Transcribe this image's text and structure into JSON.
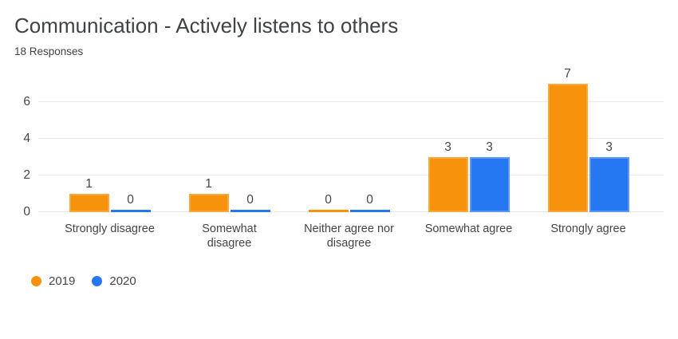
{
  "header": {
    "title": "Communication - Actively listens to others",
    "subtitle": "18 Responses"
  },
  "colors": {
    "series_2019_fill": "#F7920D",
    "series_2019_border": "#F9A93C",
    "series_2020_fill": "#2577F2",
    "series_2020_border": "#5E97F5",
    "gridline": "#E8E8E8",
    "title_text": "#3E4347",
    "label_text": "#42464A",
    "background": "#FFFFFF"
  },
  "chart_data": {
    "type": "bar",
    "title": "Communication - Actively listens to others",
    "subtitle": "18 Responses",
    "categories": [
      "Strongly disagree",
      "Somewhat disagree",
      "Neither agree nor disagree",
      "Somewhat agree",
      "Strongly agree"
    ],
    "tick_labels_wrapped": [
      "Strongly disagree",
      "Somewhat\ndisagree",
      "Neither agree nor\ndisagree",
      "Somewhat agree",
      "Strongly agree"
    ],
    "series": [
      {
        "name": "2019",
        "color": "#F7920D",
        "border_color": "#F9A93C",
        "values": [
          1,
          1,
          0,
          3,
          7
        ]
      },
      {
        "name": "2020",
        "color": "#2577F2",
        "border_color": "#5E97F5",
        "values": [
          0,
          0,
          0,
          3,
          3
        ]
      }
    ],
    "y_ticks": [
      0,
      2,
      4,
      6
    ],
    "ylim": [
      0,
      7
    ],
    "xlabel": "",
    "ylabel": "",
    "grid": "horizontal",
    "bar_value_labels": true,
    "legend_position": "bottom-left"
  }
}
